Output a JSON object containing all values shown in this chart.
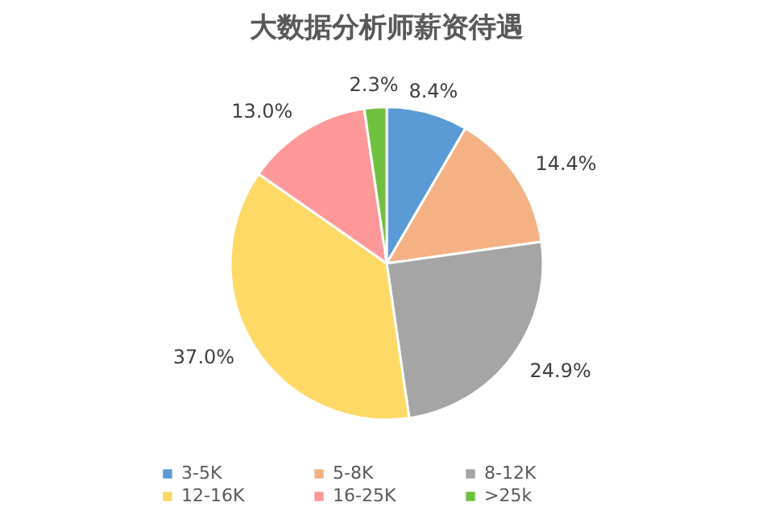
{
  "chart_data": {
    "type": "pie",
    "title": "大数据分析师薪资待遇",
    "categories": [
      "3-5K",
      "5-8K",
      "8-12K",
      "12-16K",
      "16-25K",
      ">25k"
    ],
    "values": [
      8.4,
      14.4,
      24.9,
      37.0,
      13.0,
      2.3
    ],
    "value_labels": [
      "8.4%",
      "14.4%",
      "24.9%",
      "37.0%",
      "13.0%",
      "2.3%"
    ],
    "colors": [
      "#5b9bd5",
      "#f4b183",
      "#a5a5a5",
      "#ffd966",
      "#ff9999",
      "#70c040"
    ],
    "legend": "bottom"
  }
}
